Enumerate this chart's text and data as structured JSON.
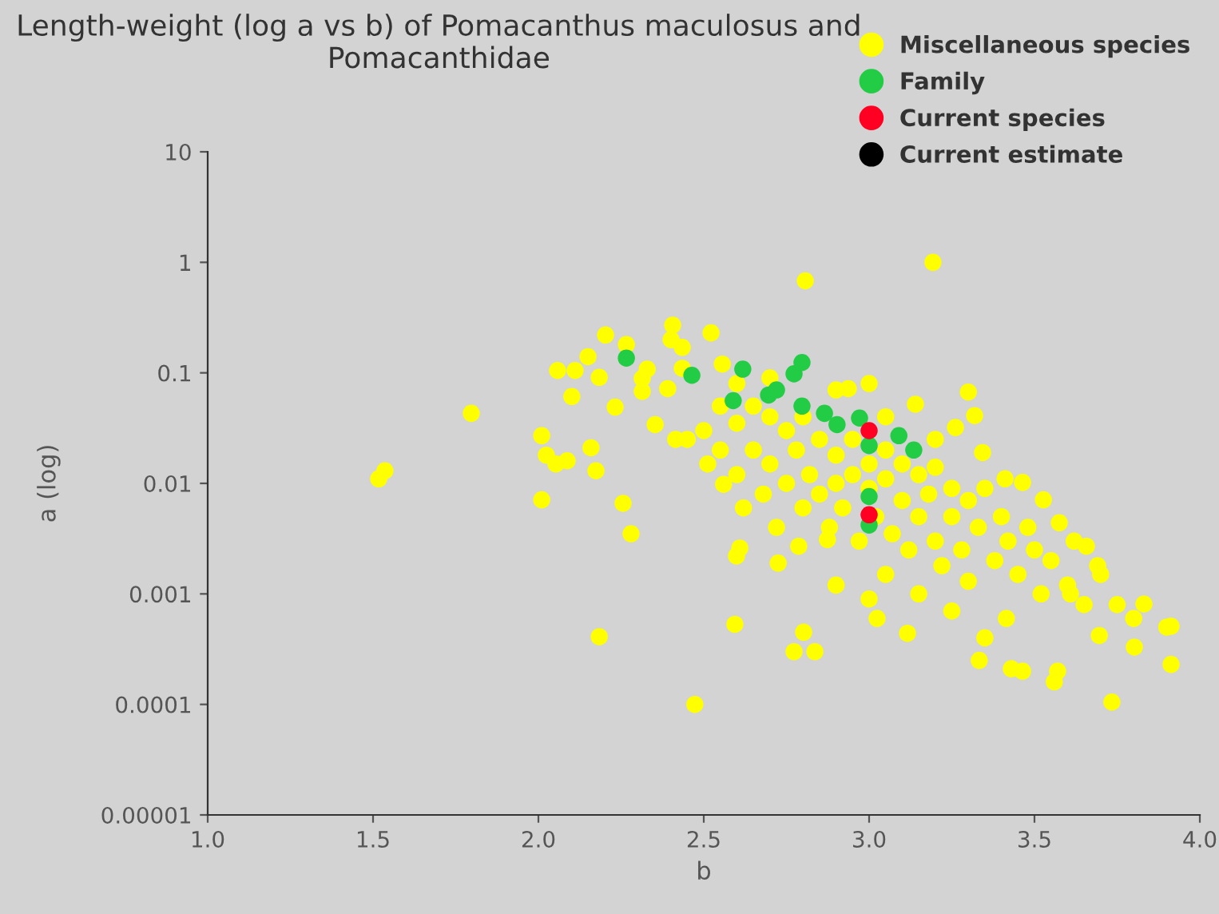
{
  "chart_data": {
    "type": "scatter",
    "title": "Length-weight (log a vs b) of Pomacanthus maculosus and Pomacanthidae",
    "xlabel": "b",
    "ylabel": "a (log)",
    "log": "y",
    "xlim": [
      1,
      4
    ],
    "xticks": [
      {
        "value": 1,
        "label": "1.0"
      },
      {
        "value": 1.5,
        "label": "1.5"
      },
      {
        "value": 2,
        "label": "2.0"
      },
      {
        "value": 2.5,
        "label": "2.5"
      },
      {
        "value": 3,
        "label": "3.0"
      },
      {
        "value": 3.5,
        "label": "3.5"
      },
      {
        "value": 4,
        "label": "4.0"
      }
    ],
    "ylim": [
      1e-05,
      10
    ],
    "yticks": [
      {
        "value": 1e-05,
        "label": "0.00001"
      },
      {
        "value": 0.0001,
        "label": "0.0001"
      },
      {
        "value": 0.001,
        "label": "0.001"
      },
      {
        "value": 0.01,
        "label": "0.01"
      },
      {
        "value": 0.1,
        "label": "0.1"
      },
      {
        "value": 1,
        "label": "1"
      },
      {
        "value": 10,
        "label": "10"
      }
    ],
    "grid": false,
    "legend": "top right",
    "marker": "circle",
    "series": [
      {
        "name": "Miscellaneous species",
        "color": "#ffff00",
        "x": [
          3.193,
          2.807,
          1.797,
          1.517,
          1.536,
          2.01,
          2.01,
          2.203,
          2.266,
          2.15,
          2.058,
          2.111,
          2.184,
          2.329,
          2.314,
          2.406,
          2.522,
          2.401,
          2.435,
          2.435,
          2.556,
          2.101,
          2.232,
          2.314,
          2.391,
          2.159,
          2.024,
          2.053,
          2.087,
          2.174,
          2.256,
          2.28,
          2.353,
          2.415,
          2.512,
          2.56,
          2.184,
          2.473,
          2.594,
          2.802,
          2.773,
          2.836,
          2.599,
          2.609,
          2.725,
          2.787,
          2.874,
          3.024,
          3.116,
          3.734,
          3.913,
          3.913,
          3.802,
          3.831,
          3.696,
          3.57,
          3.56,
          3.43,
          3.464,
          3.333,
          3.415,
          3.609,
          3.691,
          3.657,
          3.575,
          3.527,
          3.464,
          3.411,
          3.343,
          3.319,
          3.3,
          3.261,
          3.14,
          3.0,
          2.937,
          2.55,
          2.55,
          2.6,
          2.6,
          2.62,
          2.65,
          2.65,
          2.68,
          2.7,
          2.7,
          2.72,
          2.75,
          2.75,
          2.78,
          2.8,
          2.8,
          2.82,
          2.85,
          2.85,
          2.88,
          2.9,
          2.9,
          2.92,
          2.95,
          2.95,
          2.97,
          3.0,
          3.0,
          3.02,
          3.05,
          3.05,
          3.07,
          3.1,
          3.1,
          3.12,
          3.15,
          3.15,
          3.18,
          3.2,
          3.2,
          3.22,
          3.25,
          3.25,
          3.28,
          3.3,
          3.3,
          3.33,
          3.35,
          3.38,
          3.4,
          3.42,
          3.45,
          3.48,
          3.5,
          3.52,
          3.55,
          3.6,
          3.62,
          3.65,
          3.7,
          3.75,
          3.8,
          3.9,
          3.05,
          3.0,
          2.9,
          3.15,
          3.25,
          3.35,
          2.5,
          2.45,
          2.6,
          2.7,
          2.9,
          3.05,
          3.2
        ],
        "values": [
          1.0,
          0.68,
          0.043,
          0.011,
          0.013,
          0.0071,
          0.027,
          0.22,
          0.18,
          0.14,
          0.105,
          0.105,
          0.091,
          0.108,
          0.089,
          0.27,
          0.23,
          0.2,
          0.17,
          0.11,
          0.12,
          0.061,
          0.049,
          0.068,
          0.072,
          0.021,
          0.018,
          0.015,
          0.016,
          0.013,
          0.0066,
          0.0035,
          0.034,
          0.025,
          0.015,
          0.0098,
          0.00041,
          0.0001,
          0.00053,
          0.00045,
          0.0003,
          0.0003,
          0.0022,
          0.0026,
          0.0019,
          0.0027,
          0.0031,
          0.0006,
          0.00044,
          0.000105,
          0.00023,
          0.00051,
          0.00033,
          0.00081,
          0.00042,
          0.0002,
          0.00016,
          0.00021,
          0.0002,
          0.00025,
          0.0006,
          0.001,
          0.0018,
          0.0027,
          0.0044,
          0.0071,
          0.0102,
          0.011,
          0.019,
          0.041,
          0.067,
          0.032,
          0.052,
          0.08,
          0.072,
          0.05,
          0.02,
          0.035,
          0.012,
          0.006,
          0.05,
          0.02,
          0.008,
          0.04,
          0.015,
          0.004,
          0.03,
          0.01,
          0.02,
          0.006,
          0.04,
          0.012,
          0.025,
          0.008,
          0.004,
          0.018,
          0.01,
          0.006,
          0.025,
          0.012,
          0.003,
          0.015,
          0.009,
          0.005,
          0.02,
          0.011,
          0.0035,
          0.015,
          0.007,
          0.0025,
          0.012,
          0.005,
          0.008,
          0.003,
          0.014,
          0.0018,
          0.009,
          0.005,
          0.0025,
          0.007,
          0.0013,
          0.004,
          0.009,
          0.002,
          0.005,
          0.003,
          0.0015,
          0.004,
          0.0025,
          0.001,
          0.002,
          0.0012,
          0.003,
          0.0008,
          0.0015,
          0.0008,
          0.0006,
          0.0005,
          0.0015,
          0.0009,
          0.0012,
          0.001,
          0.0007,
          0.0004,
          0.03,
          0.025,
          0.08,
          0.09,
          0.07,
          0.04,
          0.025
        ]
      },
      {
        "name": "Family",
        "color": "#22cc44",
        "x": [
          2.266,
          2.464,
          2.618,
          2.589,
          2.696,
          2.72,
          2.773,
          2.797,
          2.797,
          2.865,
          2.903,
          2.971,
          3.0,
          3.09,
          3.135,
          3.0,
          3.0
        ],
        "values": [
          0.136,
          0.095,
          0.108,
          0.056,
          0.063,
          0.07,
          0.098,
          0.124,
          0.05,
          0.043,
          0.034,
          0.039,
          0.022,
          0.027,
          0.02,
          0.0076,
          0.0042
        ]
      },
      {
        "name": "Current species",
        "color": "#ff0022",
        "x": [
          3.0,
          3.0
        ],
        "values": [
          0.03,
          0.0052
        ]
      },
      {
        "name": "Current estimate",
        "color": "#000000"
      }
    ]
  }
}
